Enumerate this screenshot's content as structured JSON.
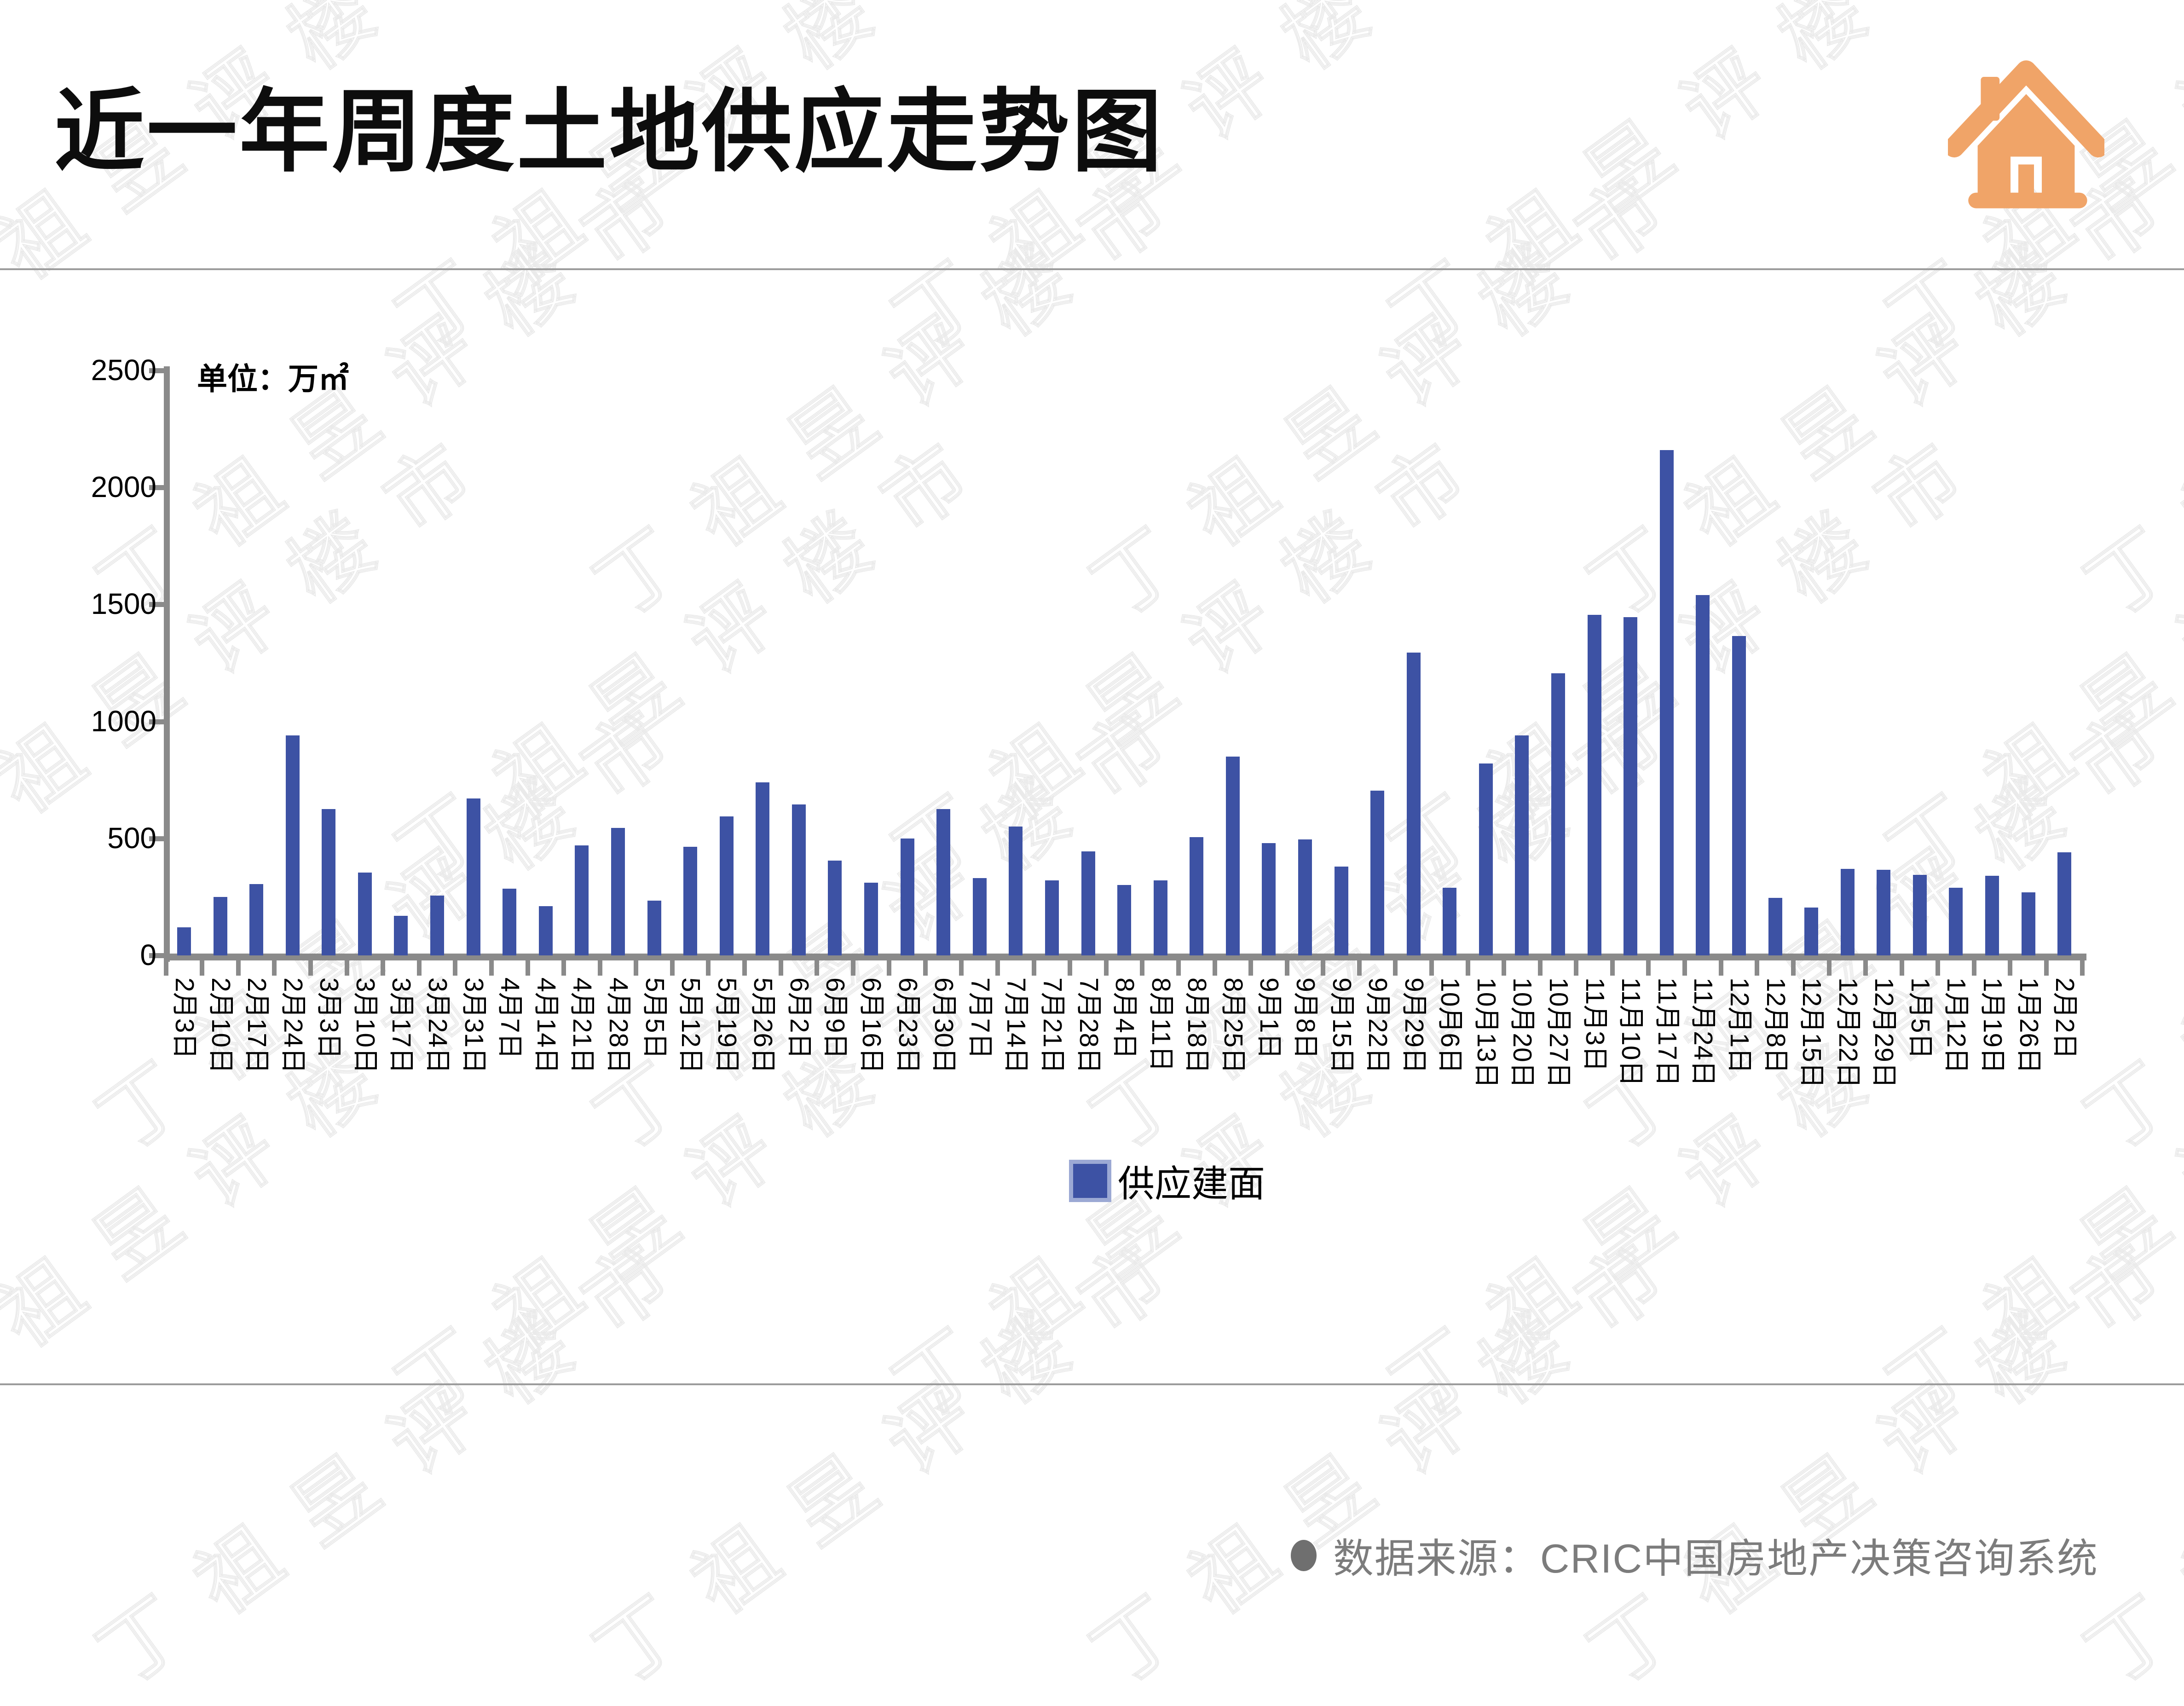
{
  "header": {
    "title": "近一年周度土地供应走势图",
    "icon": "house-icon"
  },
  "watermark": {
    "text": "丁祖昱评楼市"
  },
  "colors": {
    "bar": "#3D52A4",
    "legend_swatch_border": "#9CA9D4",
    "axis": "#8A8A8A",
    "rule": "#9C9C9C",
    "icon_orange": "#F0A468",
    "footer_text": "#7C7C7C",
    "watermark": "#EAEAEA"
  },
  "chart_data": {
    "type": "bar",
    "title": "近一年周度土地供应走势图",
    "unit_label": "单位：万㎡",
    "xlabel": "",
    "ylabel": "",
    "ylim": [
      0,
      2500
    ],
    "yticks": [
      0,
      500,
      1000,
      1500,
      2000,
      2500
    ],
    "grid": false,
    "legend_position": "bottom",
    "legend_label": "供应建面",
    "categories": [
      "2月3日",
      "2月10日",
      "2月17日",
      "2月24日",
      "3月3日",
      "3月10日",
      "3月17日",
      "3月24日",
      "3月31日",
      "4月7日",
      "4月14日",
      "4月21日",
      "4月28日",
      "5月5日",
      "5月12日",
      "5月19日",
      "5月26日",
      "6月2日",
      "6月9日",
      "6月16日",
      "6月23日",
      "6月30日",
      "7月7日",
      "7月14日",
      "7月21日",
      "7月28日",
      "8月4日",
      "8月11日",
      "8月18日",
      "8月25日",
      "9月1日",
      "9月8日",
      "9月15日",
      "9月22日",
      "9月29日",
      "10月6日",
      "10月13日",
      "10月20日",
      "10月27日",
      "11月3日",
      "11月10日",
      "11月17日",
      "11月24日",
      "12月1日",
      "12月8日",
      "12月15日",
      "12月22日",
      "12月29日",
      "1月5日",
      "1月12日",
      "1月19日",
      "1月26日",
      "2月2日"
    ],
    "values": [
      120,
      250,
      305,
      940,
      625,
      355,
      170,
      255,
      670,
      285,
      210,
      470,
      545,
      235,
      465,
      595,
      740,
      645,
      405,
      310,
      500,
      625,
      330,
      550,
      320,
      445,
      300,
      320,
      505,
      850,
      480,
      495,
      380,
      705,
      1295,
      290,
      820,
      940,
      1205,
      1455,
      1445,
      2160,
      1540,
      1365,
      245,
      205,
      370,
      365,
      345,
      290,
      340,
      270,
      440
    ]
  },
  "footer": {
    "bullet": "●",
    "source_text": "数据来源：CRIC中国房地产决策咨询系统"
  }
}
